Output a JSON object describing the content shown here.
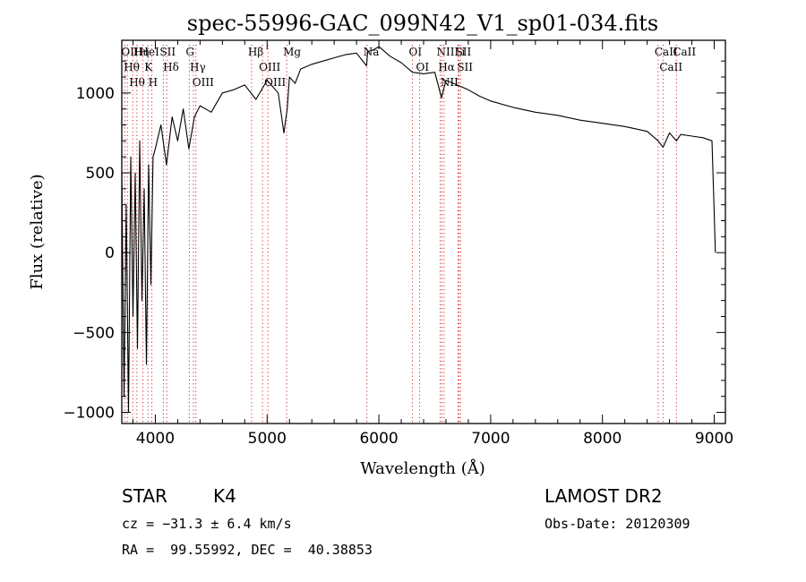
{
  "chart_data": {
    "type": "line",
    "title": "spec-55996-GAC_099N42_V1_sp01-034.fits",
    "xlabel": "Wavelength (Å)",
    "ylabel": "Flux (relative)",
    "xlim": [
      3700,
      9100
    ],
    "ylim": [
      -1070,
      1330
    ],
    "xticks": [
      4000,
      5000,
      6000,
      7000,
      8000,
      9000
    ],
    "yticks": [
      -1000,
      -500,
      0,
      500,
      1000
    ],
    "grid": false,
    "series": [
      {
        "x": [
          3700,
          3720,
          3740,
          3760,
          3780,
          3800,
          3820,
          3840,
          3860,
          3880,
          3900,
          3920,
          3940,
          3960,
          3980,
          4000,
          4050,
          4100,
          4150,
          4200,
          4250,
          4300,
          4350,
          4400,
          4500,
          4600,
          4700,
          4800,
          4900,
          5000,
          5100,
          5150,
          5180,
          5200,
          5250,
          5300,
          5400,
          5500,
          5600,
          5700,
          5800,
          5890,
          5900,
          5950,
          6000,
          6100,
          6200,
          6300,
          6400,
          6500,
          6560,
          6600,
          6700,
          6800,
          6900,
          7000,
          7200,
          7400,
          7600,
          7800,
          8000,
          8200,
          8400,
          8498,
          8542,
          8600,
          8662,
          8700,
          8800,
          8900,
          8980,
          9000,
          9010
        ],
        "y": [
          500,
          -900,
          300,
          -1000,
          600,
          -400,
          500,
          -600,
          700,
          -300,
          400,
          -700,
          550,
          -200,
          600,
          650,
          800,
          550,
          850,
          700,
          900,
          650,
          850,
          920,
          880,
          1000,
          1020,
          1050,
          960,
          1080,
          1000,
          750,
          900,
          1100,
          1060,
          1150,
          1180,
          1200,
          1220,
          1240,
          1250,
          1170,
          1260,
          1270,
          1290,
          1230,
          1190,
          1130,
          1120,
          1130,
          970,
          1080,
          1050,
          1020,
          980,
          950,
          910,
          880,
          860,
          830,
          810,
          790,
          760,
          700,
          660,
          750,
          700,
          740,
          730,
          720,
          700,
          250,
          0
        ]
      }
    ],
    "lines": [
      {
        "wavelength": 3727,
        "label": "OII"
      },
      {
        "wavelength": 3750,
        "label": "Hθ"
      },
      {
        "wavelength": 3798,
        "label": "Hθ"
      },
      {
        "wavelength": 3835,
        "label": "Hη"
      },
      {
        "wavelength": 3889,
        "label": "HeI"
      },
      {
        "wavelength": 3934,
        "label": "K"
      },
      {
        "wavelength": 3969,
        "label": "H"
      },
      {
        "wavelength": 4072,
        "label": "SII"
      },
      {
        "wavelength": 4102,
        "label": "Hδ"
      },
      {
        "wavelength": 4304,
        "label": "G"
      },
      {
        "wavelength": 4341,
        "label": "Hγ"
      },
      {
        "wavelength": 4363,
        "label": "OIII"
      },
      {
        "wavelength": 4861,
        "label": "Hβ"
      },
      {
        "wavelength": 4959,
        "label": "OIII"
      },
      {
        "wavelength": 5007,
        "label": "OIII"
      },
      {
        "wavelength": 5175,
        "label": "Mg"
      },
      {
        "wavelength": 5893,
        "label": "Na"
      },
      {
        "wavelength": 6300,
        "label": "OI"
      },
      {
        "wavelength": 6364,
        "label": "OI"
      },
      {
        "wavelength": 6548,
        "label": "NII"
      },
      {
        "wavelength": 6563,
        "label": "Hα"
      },
      {
        "wavelength": 6583,
        "label": "NII"
      },
      {
        "wavelength": 6708,
        "label": "Li"
      },
      {
        "wavelength": 6717,
        "label": "SII"
      },
      {
        "wavelength": 6731,
        "label": "SII"
      },
      {
        "wavelength": 8498,
        "label": "CaII"
      },
      {
        "wavelength": 8542,
        "label": "CaII"
      },
      {
        "wavelength": 8662,
        "label": "CaII"
      }
    ]
  },
  "info": {
    "object_class": "STAR",
    "subclass": "K4",
    "survey": "LAMOST DR2",
    "velocity": "cz = −31.3 ± 6.4 km/s",
    "obs_date": "Obs-Date: 20120309",
    "coords": "RA =  99.55992, DEC =  40.38853"
  },
  "colors": {
    "line_marker": "#d62728",
    "spectrum": "#000000",
    "axes": "#000000"
  }
}
